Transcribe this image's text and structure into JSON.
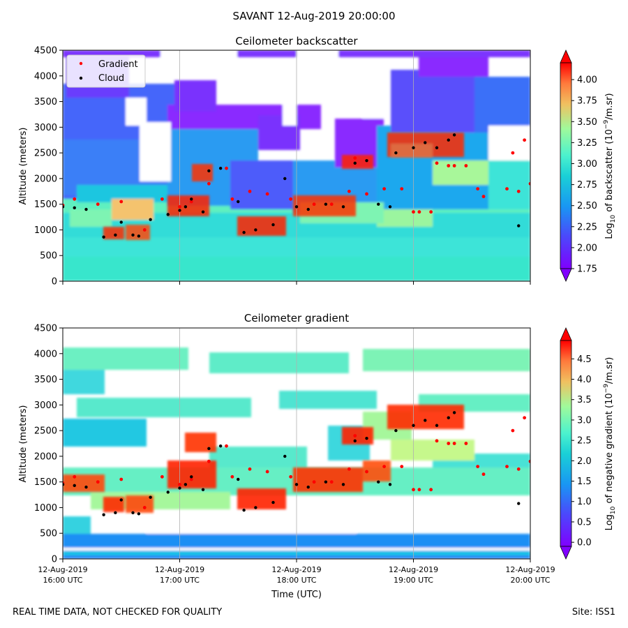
{
  "suptitle": "SAVANT 12-Aug-2019 20:00:00",
  "footer_left": "REAL TIME DATA, NOT CHECKED FOR QUALITY",
  "footer_right": "Site: ISS1",
  "colors": {
    "cloud": "#000000",
    "gradient": "#ff0000",
    "grid": "#b0b0b0"
  },
  "chart_data": [
    {
      "type": "heatmap",
      "title": "Ceilometer backscatter",
      "ylabel": "Altitude (meters)",
      "ylim": [
        0,
        4500
      ],
      "yticks": [
        0,
        500,
        1000,
        1500,
        2000,
        2500,
        3000,
        3500,
        4000,
        4500
      ],
      "xlim_hours": [
        16,
        20
      ],
      "xticks_hours": [
        16,
        17,
        18,
        19,
        20
      ],
      "show_x_tick_labels": false,
      "grid": "vertical",
      "colorbar": {
        "label": "Log10 of backscatter (10⁻⁹/m.sr)",
        "range": [
          1.75,
          4.2
        ],
        "ticks": [
          "4.00",
          "3.75",
          "3.50",
          "3.25",
          "3.00",
          "2.75",
          "2.50",
          "2.25",
          "2.00",
          "1.75"
        ],
        "tick_values": [
          4.0,
          3.75,
          3.5,
          3.25,
          3.0,
          2.75,
          2.5,
          2.25,
          2.0,
          1.75
        ]
      },
      "legend": {
        "position": "top-left",
        "entries": [
          {
            "label": "Gradient",
            "marker": "dot",
            "color": "#ff0000"
          },
          {
            "label": "Cloud",
            "marker": "dot",
            "color": "#000000"
          }
        ]
      },
      "series": [
        {
          "name": "Cloud",
          "x_hours": [
            16.0,
            16.1,
            16.2,
            16.35,
            16.45,
            16.5,
            16.6,
            16.65,
            16.75,
            16.9,
            17.0,
            17.05,
            17.1,
            17.2,
            17.25,
            17.35,
            17.5,
            17.55,
            17.65,
            17.8,
            17.9,
            18.0,
            18.1,
            18.25,
            18.4,
            18.5,
            18.6,
            18.7,
            18.8,
            18.85,
            19.0,
            19.1,
            19.2,
            19.3,
            19.35,
            19.9
          ],
          "y_m": [
            1450,
            1430,
            1400,
            860,
            900,
            1150,
            900,
            880,
            1200,
            1300,
            1380,
            1450,
            1600,
            1350,
            2150,
            2200,
            1550,
            950,
            1000,
            1100,
            2000,
            1450,
            1400,
            1500,
            1450,
            2300,
            2350,
            1500,
            1450,
            2500,
            2600,
            2700,
            2600,
            2750,
            2850,
            1080
          ]
        },
        {
          "name": "Gradient",
          "x_hours": [
            16.0,
            16.1,
            16.3,
            16.5,
            16.7,
            16.85,
            17.0,
            17.1,
            17.25,
            17.4,
            17.45,
            17.6,
            17.75,
            17.95,
            18.15,
            18.3,
            18.45,
            18.5,
            18.6,
            18.75,
            18.9,
            19.0,
            19.05,
            19.15,
            19.2,
            19.3,
            19.35,
            19.45,
            19.55,
            19.6,
            19.8,
            19.85,
            19.9,
            19.95,
            20.0
          ],
          "y_m": [
            1480,
            1600,
            1500,
            1550,
            1000,
            1600,
            1450,
            1550,
            1900,
            2200,
            1600,
            1750,
            1700,
            1600,
            1500,
            1500,
            1750,
            2400,
            1700,
            1800,
            1800,
            1350,
            1350,
            1350,
            2300,
            2250,
            2250,
            2250,
            1800,
            1650,
            1800,
            2500,
            1750,
            2750,
            1900
          ]
        }
      ]
    },
    {
      "type": "heatmap",
      "title": "Ceilometer gradient",
      "ylabel": "Altitude (meters)",
      "xlabel": "Time (UTC)",
      "ylim": [
        0,
        4500
      ],
      "yticks": [
        0,
        500,
        1000,
        1500,
        2000,
        2500,
        3000,
        3500,
        4000,
        4500
      ],
      "xlim_hours": [
        16,
        20
      ],
      "xticks_hours": [
        16,
        17,
        18,
        19,
        20
      ],
      "xtick_labels": [
        [
          "12-Aug-2019",
          "16:00 UTC"
        ],
        [
          "12-Aug-2019",
          "17:00 UTC"
        ],
        [
          "12-Aug-2019",
          "18:00 UTC"
        ],
        [
          "12-Aug-2019",
          "19:00 UTC"
        ],
        [
          "12-Aug-2019",
          "20:00 UTC"
        ]
      ],
      "show_x_tick_labels": true,
      "grid": "vertical",
      "colorbar": {
        "label": "Log10 of negative gradient (10⁻⁹/m.sr)",
        "range": [
          -0.1,
          4.95
        ],
        "ticks": [
          "4.5",
          "4.0",
          "3.5",
          "3.0",
          "2.5",
          "2.0",
          "1.5",
          "1.0",
          "0.5",
          "0.0"
        ],
        "tick_values": [
          4.5,
          4.0,
          3.5,
          3.0,
          2.5,
          2.0,
          1.5,
          1.0,
          0.5,
          0.0
        ]
      },
      "series": [
        {
          "name": "Cloud",
          "x_hours": [
            16.0,
            16.1,
            16.2,
            16.35,
            16.45,
            16.5,
            16.6,
            16.65,
            16.75,
            16.9,
            17.0,
            17.05,
            17.1,
            17.2,
            17.25,
            17.35,
            17.5,
            17.55,
            17.65,
            17.8,
            17.9,
            18.0,
            18.1,
            18.25,
            18.4,
            18.5,
            18.6,
            18.7,
            18.8,
            18.85,
            19.0,
            19.1,
            19.2,
            19.3,
            19.35,
            19.9
          ],
          "y_m": [
            1450,
            1430,
            1400,
            860,
            900,
            1150,
            900,
            880,
            1200,
            1300,
            1380,
            1450,
            1600,
            1350,
            2150,
            2200,
            1550,
            950,
            1000,
            1100,
            2000,
            1450,
            1400,
            1500,
            1450,
            2300,
            2350,
            1500,
            1450,
            2500,
            2600,
            2700,
            2600,
            2750,
            2850,
            1080
          ]
        },
        {
          "name": "Gradient",
          "x_hours": [
            16.0,
            16.1,
            16.3,
            16.5,
            16.7,
            16.85,
            17.0,
            17.1,
            17.25,
            17.4,
            17.45,
            17.6,
            17.75,
            17.95,
            18.15,
            18.3,
            18.45,
            18.5,
            18.6,
            18.75,
            18.9,
            19.0,
            19.05,
            19.15,
            19.2,
            19.3,
            19.35,
            19.45,
            19.55,
            19.6,
            19.8,
            19.85,
            19.9,
            19.95,
            20.0
          ],
          "y_m": [
            1480,
            1600,
            1500,
            1550,
            1000,
            1600,
            1450,
            1550,
            1900,
            2200,
            1600,
            1750,
            1700,
            1600,
            1500,
            1500,
            1750,
            2400,
            1700,
            1800,
            1800,
            1350,
            1350,
            1350,
            2300,
            2250,
            2250,
            2250,
            1800,
            1650,
            1800,
            2500,
            1750,
            2750,
            1900
          ]
        }
      ]
    }
  ]
}
